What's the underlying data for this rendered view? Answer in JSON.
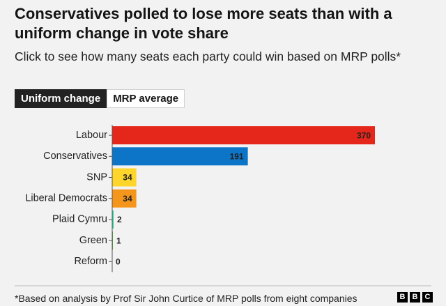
{
  "chart_data": {
    "type": "bar",
    "orientation": "horizontal",
    "title": "Conservatives polled to lose more seats than with a uniform change in vote share",
    "subtitle": "Click to see how many seats each party could win based on MRP polls*",
    "categories": [
      "Labour",
      "Conservatives",
      "SNP",
      "Liberal Democrats",
      "Plaid Cymru",
      "Green",
      "Reform"
    ],
    "values": [
      370,
      191,
      34,
      34,
      2,
      1,
      0
    ],
    "colors": [
      "#e5261a",
      "#0c75c8",
      "#fdd52b",
      "#f5961c",
      "#33d39a",
      "#5aad32",
      "#12b6cf"
    ]
  },
  "tabs": [
    "Uniform change",
    "MRP average"
  ],
  "footer": {
    "note": "*Based on analysis by Prof Sir John Curtice of MRP polls from eight companies",
    "logo": [
      "B",
      "B",
      "C"
    ]
  }
}
